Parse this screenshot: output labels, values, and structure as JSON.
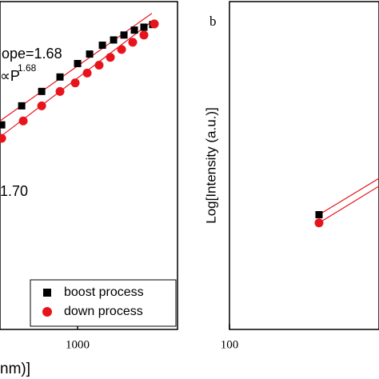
{
  "chart_data": [
    {
      "type": "scatter",
      "x_scale": "log",
      "xlim": [
        327,
        4217
      ],
      "ylim": [
        0,
        100
      ],
      "xticks": [
        1000
      ],
      "xlabel": "nm)]",
      "annotations": [
        "ope=1.68",
        "∝P",
        "1.68",
        "1.70"
      ],
      "legend": "lower right",
      "series": [
        {
          "name": "boost process",
          "color": "#000000",
          "marker": "square",
          "x": [
            335,
            447,
            596,
            776,
            1000,
            1189,
            1429,
            1679,
            1950,
            2265,
            2600,
            2951
          ],
          "values": [
            62.4,
            68.2,
            72.6,
            77.0,
            81.1,
            84.0,
            86.7,
            88.3,
            89.8,
            91.3,
            92.2,
            93.0
          ]
        },
        {
          "name": "down process",
          "color": "#e8141c",
          "marker": "circle",
          "x": [
            335,
            457,
            596,
            776,
            966,
            1148,
            1363,
            1603,
            1884,
            2212,
            2600,
            3020
          ],
          "values": [
            58.3,
            63.6,
            68.2,
            72.6,
            75.2,
            78.2,
            80.6,
            83.0,
            85.4,
            87.6,
            89.8,
            93.2
          ]
        }
      ],
      "fit_lines": [
        {
          "color": "#e8141c",
          "x": [
            327,
            2915
          ],
          "values": [
            63.6,
            96.4
          ]
        },
        {
          "color": "#e8141c",
          "x": [
            327,
            2915
          ],
          "values": [
            58.7,
            93.9
          ]
        }
      ]
    },
    {
      "type": "scatter",
      "x_scale": "log",
      "xlim": [
        100,
        861
      ],
      "ylim": [
        0,
        100
      ],
      "xticks": [
        100
      ],
      "panel_label": "b",
      "ylabel": "Log[Intensity (a.u.)]",
      "series": [
        {
          "color": "#000000",
          "marker": "square",
          "x": [
            363
          ],
          "values": [
            35.0
          ]
        },
        {
          "color": "#e8141c",
          "marker": "circle",
          "x": [
            363
          ],
          "values": [
            32.5
          ]
        }
      ],
      "fit_lines": [
        {
          "color": "#e8141c",
          "x": [
            363,
            861
          ],
          "values": [
            35.0,
            46.1
          ]
        },
        {
          "color": "#e8141c",
          "x": [
            363,
            861
          ],
          "values": [
            32.5,
            43.7
          ]
        }
      ]
    }
  ]
}
